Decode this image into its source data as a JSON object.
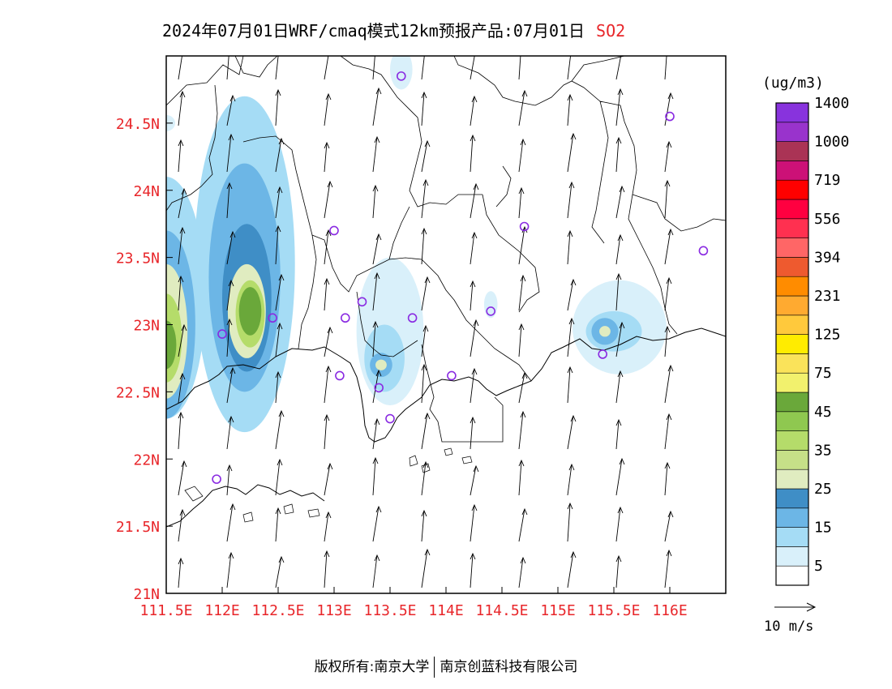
{
  "title": {
    "main": "2024年07月01日WRF/cmaq模式12km预报产品:07月01日",
    "species": "SO2"
  },
  "map": {
    "lon_range": [
      111.5,
      116.5
    ],
    "lat_range": [
      21.0,
      25.0
    ],
    "lat_ticks": [
      {
        "value": 24.5,
        "label": "24.5N"
      },
      {
        "value": 24.0,
        "label": "24N"
      },
      {
        "value": 23.5,
        "label": "23.5N"
      },
      {
        "value": 23.0,
        "label": "23N"
      },
      {
        "value": 22.5,
        "label": "22.5N"
      },
      {
        "value": 22.0,
        "label": "22N"
      },
      {
        "value": 21.5,
        "label": "21.5N"
      },
      {
        "value": 21.0,
        "label": "21N"
      }
    ],
    "lon_ticks": [
      {
        "value": 111.5,
        "label": "111.5E"
      },
      {
        "value": 112.0,
        "label": "112E"
      },
      {
        "value": 112.5,
        "label": "112.5E"
      },
      {
        "value": 113.0,
        "label": "113E"
      },
      {
        "value": 113.5,
        "label": "113.5E"
      },
      {
        "value": 114.0,
        "label": "114E"
      },
      {
        "value": 114.5,
        "label": "114.5E"
      },
      {
        "value": 115.0,
        "label": "115E"
      },
      {
        "value": 115.5,
        "label": "115.5E"
      },
      {
        "value": 116.0,
        "label": "116E"
      }
    ],
    "axis_label_color": "#e8262a",
    "stations": [
      [
        113.6,
        24.85
      ],
      [
        116.0,
        24.55
      ],
      [
        113.0,
        23.7
      ],
      [
        114.7,
        23.73
      ],
      [
        116.3,
        23.55
      ],
      [
        113.25,
        23.17
      ],
      [
        113.1,
        23.05
      ],
      [
        113.7,
        23.05
      ],
      [
        114.4,
        23.1
      ],
      [
        112.45,
        23.05
      ],
      [
        112.0,
        22.93
      ],
      [
        115.4,
        22.78
      ],
      [
        113.05,
        22.62
      ],
      [
        114.05,
        22.62
      ],
      [
        113.4,
        22.53
      ],
      [
        113.5,
        22.3
      ],
      [
        111.95,
        21.85
      ]
    ],
    "station_color": "#8a2be2",
    "plumes": [
      {
        "lon": 112.2,
        "lat": 23.45,
        "rlon": 0.45,
        "rlat": 1.25,
        "level": 1
      },
      {
        "lon": 112.2,
        "lat": 23.35,
        "rlon": 0.32,
        "rlat": 0.85,
        "level": 2
      },
      {
        "lon": 112.22,
        "lat": 23.2,
        "rlon": 0.22,
        "rlat": 0.55,
        "level": 3
      },
      {
        "lon": 112.22,
        "lat": 23.1,
        "rlon": 0.17,
        "rlat": 0.35,
        "level": 4
      },
      {
        "lon": 112.25,
        "lat": 23.08,
        "rlon": 0.13,
        "rlat": 0.25,
        "level": 6
      },
      {
        "lon": 112.25,
        "lat": 23.1,
        "rlon": 0.1,
        "rlat": 0.18,
        "level": 8
      },
      {
        "lon": 111.5,
        "lat": 23.2,
        "rlon": 0.35,
        "rlat": 0.9,
        "level": 1
      },
      {
        "lon": 111.5,
        "lat": 23.0,
        "rlon": 0.26,
        "rlat": 0.7,
        "level": 2
      },
      {
        "lon": 111.5,
        "lat": 22.95,
        "rlon": 0.19,
        "rlat": 0.5,
        "level": 4
      },
      {
        "lon": 111.5,
        "lat": 22.9,
        "rlon": 0.14,
        "rlat": 0.33,
        "level": 6
      },
      {
        "lon": 111.5,
        "lat": 22.85,
        "rlon": 0.09,
        "rlat": 0.18,
        "level": 8
      },
      {
        "lon": 113.5,
        "lat": 22.95,
        "rlon": 0.3,
        "rlat": 0.55,
        "level": 0
      },
      {
        "lon": 113.45,
        "lat": 22.75,
        "rlon": 0.18,
        "rlat": 0.25,
        "level": 1
      },
      {
        "lon": 113.42,
        "lat": 22.7,
        "rlon": 0.1,
        "rlat": 0.09,
        "level": 2
      },
      {
        "lon": 113.42,
        "lat": 22.7,
        "rlon": 0.05,
        "rlat": 0.04,
        "level": 4
      },
      {
        "lon": 115.55,
        "lat": 22.98,
        "rlon": 0.42,
        "rlat": 0.35,
        "level": 0
      },
      {
        "lon": 115.5,
        "lat": 22.95,
        "rlon": 0.25,
        "rlat": 0.15,
        "level": 1
      },
      {
        "lon": 115.42,
        "lat": 22.95,
        "rlon": 0.12,
        "rlat": 0.1,
        "level": 2
      },
      {
        "lon": 115.42,
        "lat": 22.95,
        "rlon": 0.05,
        "rlat": 0.04,
        "level": 4
      },
      {
        "lon": 113.6,
        "lat": 24.9,
        "rlon": 0.1,
        "rlat": 0.15,
        "level": 0
      },
      {
        "lon": 114.4,
        "lat": 23.15,
        "rlon": 0.06,
        "rlat": 0.1,
        "level": 0
      },
      {
        "lon": 111.5,
        "lat": 24.5,
        "rlon": 0.08,
        "rlat": 0.06,
        "level": 0
      }
    ]
  },
  "colorbar": {
    "unit": "(ug/m3)",
    "colors": [
      "#ffffff",
      "#d9f0fa",
      "#a5dcf5",
      "#6cb6e6",
      "#3f8ec6",
      "#e0ecc0",
      "#c6e088",
      "#b5dc6a",
      "#8fc850",
      "#6aa83a",
      "#f2f16d",
      "#fae35a",
      "#ffec00",
      "#ffc93c",
      "#ffaa30",
      "#ff8c00",
      "#ee5a2f",
      "#ff6666",
      "#ff3050",
      "#ff0040",
      "#ff0000",
      "#cc1177",
      "#aa3355",
      "#9933cc",
      "#8833dd"
    ],
    "labels": [
      "5",
      "15",
      "25",
      "35",
      "45",
      "75",
      "125",
      "231",
      "394",
      "556",
      "719",
      "1000",
      "1400"
    ]
  },
  "wind_legend": {
    "label": "10  m/s"
  },
  "footer": {
    "left": "版权所有:南京大学",
    "right": "南京创蓝科技有限公司"
  }
}
